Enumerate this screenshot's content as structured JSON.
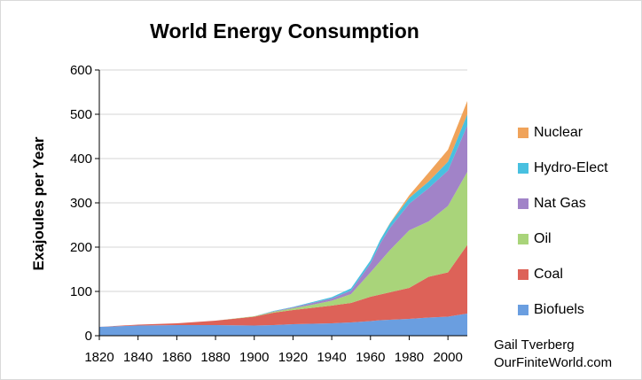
{
  "chart_data": {
    "type": "area",
    "stacked": true,
    "title": "World Energy Consumption",
    "ylabel": "Exajoules per Year",
    "xlabel": "",
    "xlim": [
      1820,
      2010
    ],
    "ylim": [
      0,
      600
    ],
    "x_ticks": [
      1820,
      1840,
      1860,
      1880,
      1900,
      1920,
      1940,
      1960,
      1980,
      2000
    ],
    "y_ticks": [
      0,
      100,
      200,
      300,
      400,
      500,
      600
    ],
    "grid": "horizontal",
    "legend_position": "right",
    "x": [
      1820,
      1840,
      1860,
      1880,
      1900,
      1910,
      1920,
      1930,
      1940,
      1950,
      1960,
      1965,
      1970,
      1980,
      1990,
      2000,
      2010
    ],
    "series": [
      {
        "name": "Biofuels",
        "color": "#6a9ee0",
        "values": [
          20,
          23,
          24,
          24,
          23,
          24,
          26,
          27,
          28,
          30,
          33,
          35,
          36,
          38,
          41,
          43,
          50
        ]
      },
      {
        "name": "Coal",
        "color": "#dd6258",
        "values": [
          0,
          2,
          4,
          10,
          20,
          28,
          32,
          36,
          40,
          44,
          55,
          58,
          62,
          70,
          92,
          100,
          155
        ]
      },
      {
        "name": "Oil",
        "color": "#a9d47a",
        "values": [
          0,
          0,
          0,
          0,
          1,
          2,
          4,
          7,
          11,
          20,
          55,
          75,
          95,
          130,
          125,
          150,
          165
        ]
      },
      {
        "name": "Nat Gas",
        "color": "#a183c8",
        "values": [
          0,
          0,
          0,
          0,
          0,
          1,
          2,
          4,
          5,
          8,
          20,
          40,
          50,
          60,
          75,
          80,
          105
        ]
      },
      {
        "name": "Hydro-Elect",
        "color": "#48c0e0",
        "values": [
          0,
          0,
          0,
          0,
          0,
          1,
          1,
          2,
          3,
          5,
          7,
          8,
          10,
          13,
          15,
          20,
          25
        ]
      },
      {
        "name": "Nuclear",
        "color": "#f0a35a",
        "values": [
          0,
          0,
          0,
          0,
          0,
          0,
          0,
          0,
          0,
          0,
          0,
          0,
          1,
          6,
          20,
          27,
          30
        ]
      }
    ],
    "legend_order": [
      "Nuclear",
      "Hydro-Elect",
      "Nat Gas",
      "Oil",
      "Coal",
      "Biofuels"
    ]
  },
  "credit": {
    "line1": "Gail Tverberg",
    "line2": "OurFiniteWorld.com"
  }
}
